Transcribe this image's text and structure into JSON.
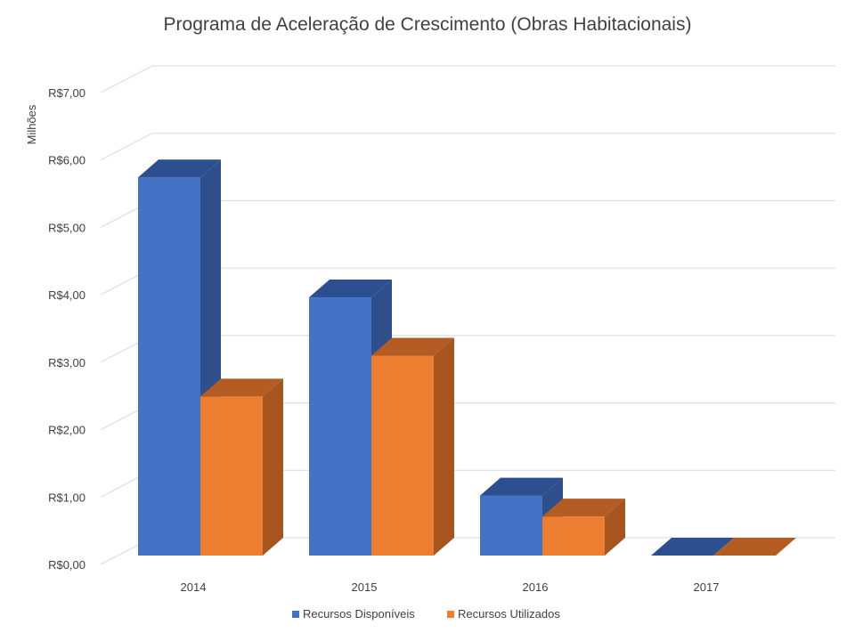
{
  "chart_data": {
    "type": "bar",
    "title": "Programa de Aceleração de Crescimento (Obras Habitacionais)",
    "ylabel": "Milhões",
    "xlabel": "",
    "categories": [
      "2014",
      "2015",
      "2016",
      "2017"
    ],
    "series": [
      {
        "name": "Recursos Disponíveis",
        "values": [
          6.3,
          4.3,
          1.0,
          0.0
        ],
        "color": "#4472C4",
        "side_color": "#2F4F8C",
        "top_color": "#2E4F8F"
      },
      {
        "name": "Recursos Utilizados",
        "values": [
          2.65,
          3.33,
          0.65,
          0.0
        ],
        "color": "#ED7D31",
        "side_color": "#A65521",
        "top_color": "#B35C23"
      }
    ],
    "ylim": [
      0,
      7
    ],
    "yticks": [
      "R$0,00",
      "R$1,00",
      "R$2,00",
      "R$3,00",
      "R$4,00",
      "R$5,00",
      "R$6,00",
      "R$7,00"
    ],
    "grid": true,
    "legend_position": "bottom",
    "style": "3d-column"
  }
}
